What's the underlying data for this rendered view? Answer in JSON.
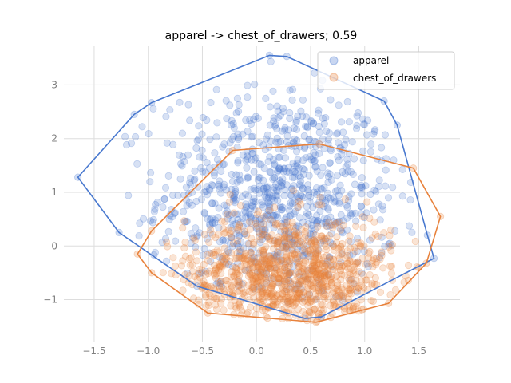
{
  "chart_data": {
    "type": "scatter",
    "title": "apparel -> chest_of_drawers; 0.59",
    "xlabel": "",
    "ylabel": "",
    "xlim": [
      -1.78,
      1.88
    ],
    "ylim": [
      -1.78,
      3.72
    ],
    "x_ticks": [
      -1.5,
      -1.0,
      -0.5,
      0.0,
      0.5,
      1.0,
      1.5
    ],
    "x_tick_labels": [
      "−1.5",
      "−1.0",
      "−0.5",
      "0.0",
      "0.5",
      "1.0",
      "1.5"
    ],
    "y_ticks": [
      -1,
      0,
      1,
      2,
      3
    ],
    "y_tick_labels": [
      "−1",
      "0",
      "1",
      "2",
      "3"
    ],
    "grid": true,
    "legend_position": "top-right",
    "series": [
      {
        "name": "apparel",
        "color": "#4878cf",
        "center": [
          0.2,
          0.9
        ],
        "spread": [
          0.55,
          1.0
        ],
        "count": 900,
        "hull": [
          [
            -1.65,
            1.28
          ],
          [
            -1.13,
            2.45
          ],
          [
            -0.97,
            2.67
          ],
          [
            0.12,
            3.55
          ],
          [
            0.28,
            3.53
          ],
          [
            1.18,
            2.7
          ],
          [
            1.3,
            2.25
          ],
          [
            1.58,
            0.2
          ],
          [
            1.64,
            -0.23
          ],
          [
            0.6,
            -1.32
          ],
          [
            0.45,
            -1.35
          ],
          [
            -0.55,
            -0.75
          ],
          [
            -1.27,
            0.25
          ]
        ]
      },
      {
        "name": "chest_of_drawers",
        "color": "#e8823c",
        "center": [
          0.3,
          -0.55
        ],
        "spread": [
          0.48,
          0.55
        ],
        "count": 1000,
        "hull": [
          [
            -0.22,
            1.78
          ],
          [
            0.58,
            1.9
          ],
          [
            1.45,
            1.45
          ],
          [
            1.7,
            0.55
          ],
          [
            1.57,
            -0.32
          ],
          [
            1.22,
            -1.07
          ],
          [
            0.55,
            -1.42
          ],
          [
            -0.45,
            -1.25
          ],
          [
            -0.97,
            -0.5
          ],
          [
            -1.1,
            -0.15
          ],
          [
            -0.97,
            0.28
          ]
        ]
      }
    ]
  }
}
